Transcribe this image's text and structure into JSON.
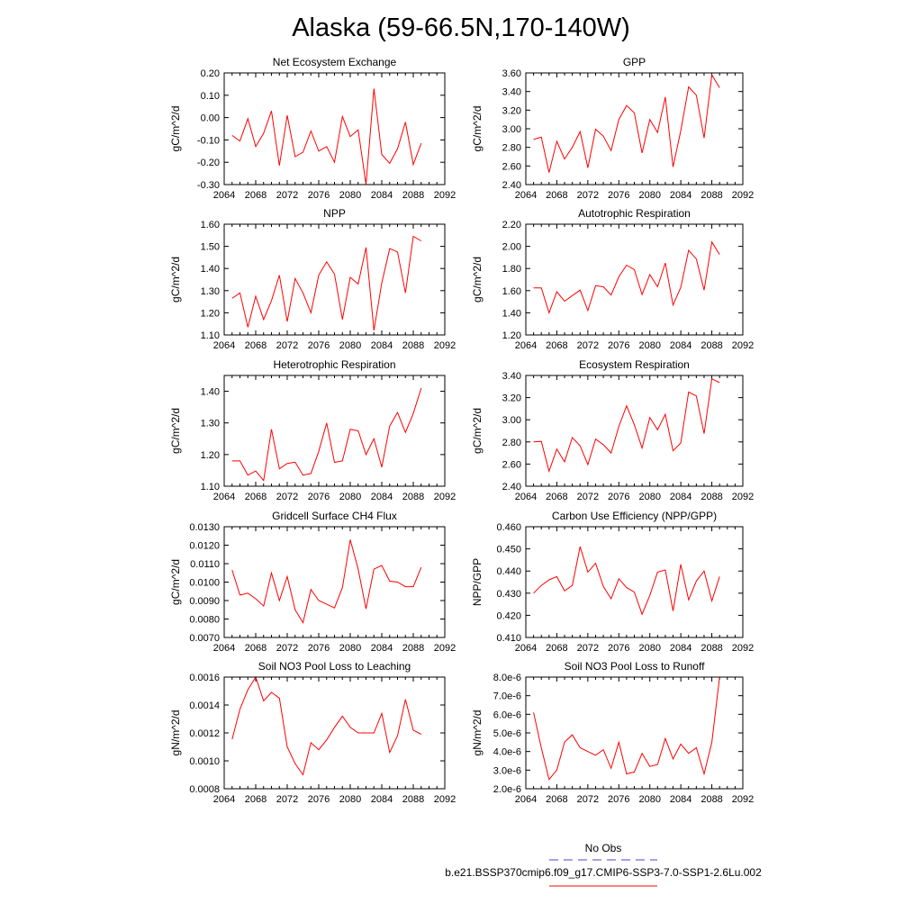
{
  "figure": {
    "title": "Alaska (59-66.5N,170-140W)",
    "legend": {
      "obs_label": "No Obs",
      "obs_color": "#4444cc",
      "model_label": "b.e21.BSSP370cmip6.f09_g17.CMIP6-SSP3-7.0-SSP1-2.6Lu.002",
      "model_color": "#ff0000"
    }
  },
  "chart_data": [
    {
      "type": "line",
      "title": "Net Ecosystem Exchange",
      "ylabel": "gC/m^2/d",
      "xlim": [
        2064,
        2092
      ],
      "ylim": [
        -0.3,
        0.2
      ],
      "xticks": [
        "2064",
        "2068",
        "2072",
        "2076",
        "2080",
        "2084",
        "2088",
        "2092"
      ],
      "yticks": [
        "-0.30",
        "-0.20",
        "-0.10",
        "0.00",
        "0.10",
        "0.20"
      ],
      "series": [
        {
          "color": "#ff0000",
          "x": [
            2065,
            2066,
            2067,
            2068,
            2069,
            2070,
            2071,
            2072,
            2073,
            2074,
            2075,
            2076,
            2077,
            2078,
            2079,
            2080,
            2081,
            2082,
            2083,
            2084,
            2085,
            2086,
            2087,
            2088,
            2089
          ],
          "y": [
            -0.08,
            -0.105,
            -0.005,
            -0.13,
            -0.07,
            0.03,
            -0.215,
            0.01,
            -0.175,
            -0.155,
            -0.06,
            -0.15,
            -0.13,
            -0.2,
            0.005,
            -0.085,
            -0.055,
            -0.3,
            0.13,
            -0.165,
            -0.205,
            -0.14,
            -0.02,
            -0.21,
            -0.115
          ]
        }
      ]
    },
    {
      "type": "line",
      "title": "GPP",
      "ylabel": "gC/m^2/d",
      "xlim": [
        2064,
        2092
      ],
      "ylim": [
        2.4,
        3.6
      ],
      "xticks": [
        "2064",
        "2068",
        "2072",
        "2076",
        "2080",
        "2084",
        "2088",
        "2092"
      ],
      "yticks": [
        "2.40",
        "2.60",
        "2.80",
        "3.00",
        "3.20",
        "3.40",
        "3.60"
      ],
      "series": [
        {
          "color": "#ff0000",
          "x": [
            2065,
            2066,
            2067,
            2068,
            2069,
            2070,
            2071,
            2072,
            2073,
            2074,
            2075,
            2076,
            2077,
            2078,
            2079,
            2080,
            2081,
            2082,
            2083,
            2084,
            2085,
            2086,
            2087,
            2088,
            2089
          ],
          "y": [
            2.885,
            2.91,
            2.53,
            2.865,
            2.675,
            2.8,
            2.97,
            2.58,
            2.995,
            2.92,
            2.765,
            3.1,
            3.25,
            3.17,
            2.74,
            3.1,
            2.96,
            3.34,
            2.59,
            2.98,
            3.45,
            3.36,
            2.9,
            3.58,
            3.44
          ]
        }
      ]
    },
    {
      "type": "line",
      "title": "NPP",
      "ylabel": "gC/m^2/d",
      "xlim": [
        2064,
        2092
      ],
      "ylim": [
        1.1,
        1.6
      ],
      "xticks": [
        "2064",
        "2068",
        "2072",
        "2076",
        "2080",
        "2084",
        "2088",
        "2092"
      ],
      "yticks": [
        "1.10",
        "1.20",
        "1.30",
        "1.40",
        "1.50",
        "1.60"
      ],
      "series": [
        {
          "color": "#ff0000",
          "x": [
            2065,
            2066,
            2067,
            2068,
            2069,
            2070,
            2071,
            2072,
            2073,
            2074,
            2075,
            2076,
            2077,
            2078,
            2079,
            2080,
            2081,
            2082,
            2083,
            2084,
            2085,
            2086,
            2087,
            2088,
            2089
          ],
          "y": [
            1.265,
            1.29,
            1.135,
            1.275,
            1.17,
            1.255,
            1.37,
            1.16,
            1.355,
            1.29,
            1.2,
            1.37,
            1.43,
            1.375,
            1.17,
            1.36,
            1.33,
            1.495,
            1.12,
            1.335,
            1.49,
            1.475,
            1.29,
            1.545,
            1.525
          ]
        }
      ]
    },
    {
      "type": "line",
      "title": "Autotrophic Respiration",
      "ylabel": "gC/m^2/d",
      "xlim": [
        2064,
        2092
      ],
      "ylim": [
        1.2,
        2.2
      ],
      "xticks": [
        "2064",
        "2068",
        "2072",
        "2076",
        "2080",
        "2084",
        "2088",
        "2092"
      ],
      "yticks": [
        "1.20",
        "1.40",
        "1.60",
        "1.80",
        "2.00",
        "2.20"
      ],
      "series": [
        {
          "color": "#ff0000",
          "x": [
            2065,
            2066,
            2067,
            2068,
            2069,
            2070,
            2071,
            2072,
            2073,
            2074,
            2075,
            2076,
            2077,
            2078,
            2079,
            2080,
            2081,
            2082,
            2083,
            2084,
            2085,
            2086,
            2087,
            2088,
            2089
          ],
          "y": [
            1.625,
            1.625,
            1.4,
            1.59,
            1.505,
            1.555,
            1.605,
            1.42,
            1.645,
            1.635,
            1.56,
            1.725,
            1.83,
            1.79,
            1.565,
            1.745,
            1.635,
            1.85,
            1.47,
            1.63,
            1.965,
            1.885,
            1.605,
            2.04,
            1.925
          ]
        }
      ]
    },
    {
      "type": "line",
      "title": "Heterotrophic Respiration",
      "ylabel": "gC/m^2/d",
      "xlim": [
        2064,
        2092
      ],
      "ylim": [
        1.1,
        1.45
      ],
      "xticks": [
        "2064",
        "2068",
        "2072",
        "2076",
        "2080",
        "2084",
        "2088",
        "2092"
      ],
      "yticks": [
        "1.10",
        "1.20",
        "1.30",
        "1.40"
      ],
      "series": [
        {
          "color": "#ff0000",
          "x": [
            2065,
            2066,
            2067,
            2068,
            2069,
            2070,
            2071,
            2072,
            2073,
            2074,
            2075,
            2076,
            2077,
            2078,
            2079,
            2080,
            2081,
            2082,
            2083,
            2084,
            2085,
            2086,
            2087,
            2088,
            2089
          ],
          "y": [
            1.18,
            1.18,
            1.135,
            1.148,
            1.118,
            1.28,
            1.155,
            1.172,
            1.176,
            1.135,
            1.14,
            1.21,
            1.3,
            1.175,
            1.18,
            1.28,
            1.275,
            1.2,
            1.25,
            1.16,
            1.29,
            1.333,
            1.27,
            1.33,
            1.41
          ]
        }
      ]
    },
    {
      "type": "line",
      "title": "Ecosystem Respiration",
      "ylabel": "gC/m^2/d",
      "xlim": [
        2064,
        2092
      ],
      "ylim": [
        2.4,
        3.4
      ],
      "xticks": [
        "2064",
        "2068",
        "2072",
        "2076",
        "2080",
        "2084",
        "2088",
        "2092"
      ],
      "yticks": [
        "2.40",
        "2.60",
        "2.80",
        "3.00",
        "3.20",
        "3.40"
      ],
      "series": [
        {
          "color": "#ff0000",
          "x": [
            2065,
            2066,
            2067,
            2068,
            2069,
            2070,
            2071,
            2072,
            2073,
            2074,
            2075,
            2076,
            2077,
            2078,
            2079,
            2080,
            2081,
            2082,
            2083,
            2084,
            2085,
            2086,
            2087,
            2088,
            2089
          ],
          "y": [
            2.8,
            2.805,
            2.535,
            2.735,
            2.62,
            2.84,
            2.765,
            2.595,
            2.825,
            2.775,
            2.7,
            2.94,
            3.125,
            2.955,
            2.745,
            3.02,
            2.91,
            3.05,
            2.72,
            2.79,
            3.25,
            3.215,
            2.875,
            3.37,
            3.335
          ]
        }
      ]
    },
    {
      "type": "line",
      "title": "Gridcell Surface CH4 Flux",
      "ylabel": "gC/m^2/d",
      "xlim": [
        2064,
        2092
      ],
      "ylim": [
        0.007,
        0.013
      ],
      "xticks": [
        "2064",
        "2068",
        "2072",
        "2076",
        "2080",
        "2084",
        "2088",
        "2092"
      ],
      "yticks": [
        "0.0070",
        "0.0080",
        "0.0090",
        "0.0100",
        "0.0110",
        "0.0120",
        "0.0130"
      ],
      "series": [
        {
          "color": "#ff0000",
          "x": [
            2065,
            2066,
            2067,
            2068,
            2069,
            2070,
            2071,
            2072,
            2073,
            2074,
            2075,
            2076,
            2077,
            2078,
            2079,
            2080,
            2081,
            2082,
            2083,
            2084,
            2085,
            2086,
            2087,
            2088,
            2089
          ],
          "y": [
            0.01065,
            0.0093,
            0.0094,
            0.0091,
            0.0087,
            0.0105,
            0.009,
            0.0103,
            0.0085,
            0.0078,
            0.0096,
            0.009,
            0.0088,
            0.0086,
            0.0097,
            0.0123,
            0.0107,
            0.00855,
            0.0107,
            0.0109,
            0.01005,
            0.01,
            0.00975,
            0.00975,
            0.0108
          ]
        }
      ]
    },
    {
      "type": "line",
      "title": "Carbon Use Efficiency (NPP/GPP)",
      "ylabel": "NPP/GPP",
      "xlim": [
        2064,
        2092
      ],
      "ylim": [
        0.41,
        0.46
      ],
      "xticks": [
        "2064",
        "2068",
        "2072",
        "2076",
        "2080",
        "2084",
        "2088",
        "2092"
      ],
      "yticks": [
        "0.410",
        "0.420",
        "0.430",
        "0.440",
        "0.450",
        "0.460"
      ],
      "series": [
        {
          "color": "#ff0000",
          "x": [
            2065,
            2066,
            2067,
            2068,
            2069,
            2070,
            2071,
            2072,
            2073,
            2074,
            2075,
            2076,
            2077,
            2078,
            2079,
            2080,
            2081,
            2082,
            2083,
            2084,
            2085,
            2086,
            2087,
            2088,
            2089
          ],
          "y": [
            0.43,
            0.4335,
            0.436,
            0.4375,
            0.431,
            0.4335,
            0.451,
            0.4395,
            0.4435,
            0.433,
            0.4275,
            0.4365,
            0.4325,
            0.4305,
            0.4205,
            0.429,
            0.4395,
            0.4405,
            0.422,
            0.443,
            0.427,
            0.4355,
            0.44,
            0.4265,
            0.4375
          ]
        }
      ]
    },
    {
      "type": "line",
      "title": "Soil NO3 Pool Loss to Leaching",
      "ylabel": "gN/m^2/d",
      "xlim": [
        2064,
        2092
      ],
      "ylim": [
        0.0008,
        0.0016
      ],
      "xticks": [
        "2064",
        "2068",
        "2072",
        "2076",
        "2080",
        "2084",
        "2088",
        "2092"
      ],
      "yticks": [
        "0.0008",
        "0.0010",
        "0.0012",
        "0.0014",
        "0.0016"
      ],
      "series": [
        {
          "color": "#ff0000",
          "x": [
            2065,
            2066,
            2067,
            2068,
            2069,
            2070,
            2071,
            2072,
            2073,
            2074,
            2075,
            2076,
            2077,
            2078,
            2079,
            2080,
            2081,
            2082,
            2083,
            2084,
            2085,
            2086,
            2087,
            2088,
            2089
          ],
          "y": [
            0.001155,
            0.00137,
            0.00151,
            0.0016,
            0.00143,
            0.00149,
            0.00145,
            0.0011,
            0.00098,
            0.0009,
            0.00113,
            0.00108,
            0.00115,
            0.00124,
            0.00132,
            0.00124,
            0.0012,
            0.0012,
            0.0012,
            0.00134,
            0.00106,
            0.00118,
            0.00144,
            0.00122,
            0.00119
          ]
        }
      ]
    },
    {
      "type": "line",
      "title": "Soil NO3 Pool Loss to Runoff",
      "ylabel": "gN/m^2/d",
      "xlim": [
        2064,
        2092
      ],
      "ylim": [
        2e-06,
        8e-06
      ],
      "xticks": [
        "2064",
        "2068",
        "2072",
        "2076",
        "2080",
        "2084",
        "2088",
        "2092"
      ],
      "yticks": [
        "2.0e-6",
        "3.0e-6",
        "4.0e-6",
        "5.0e-6",
        "6.0e-6",
        "7.0e-6",
        "8.0e-6"
      ],
      "series": [
        {
          "color": "#ff0000",
          "x": [
            2065,
            2066,
            2067,
            2068,
            2069,
            2070,
            2071,
            2072,
            2073,
            2074,
            2075,
            2076,
            2077,
            2078,
            2079,
            2080,
            2081,
            2082,
            2083,
            2084,
            2085,
            2086,
            2087,
            2088,
            2089
          ],
          "y": [
            6.1e-06,
            4.2e-06,
            2.5e-06,
            3e-06,
            4.5e-06,
            4.9e-06,
            4.2e-06,
            4e-06,
            3.8e-06,
            4.1e-06,
            3.1e-06,
            4.5e-06,
            2.8e-06,
            2.9e-06,
            3.9e-06,
            3.2e-06,
            3.3e-06,
            4.7e-06,
            3.6e-06,
            4.4e-06,
            3.9e-06,
            4.2e-06,
            2.8e-06,
            4.5e-06,
            8e-06
          ]
        }
      ]
    }
  ]
}
